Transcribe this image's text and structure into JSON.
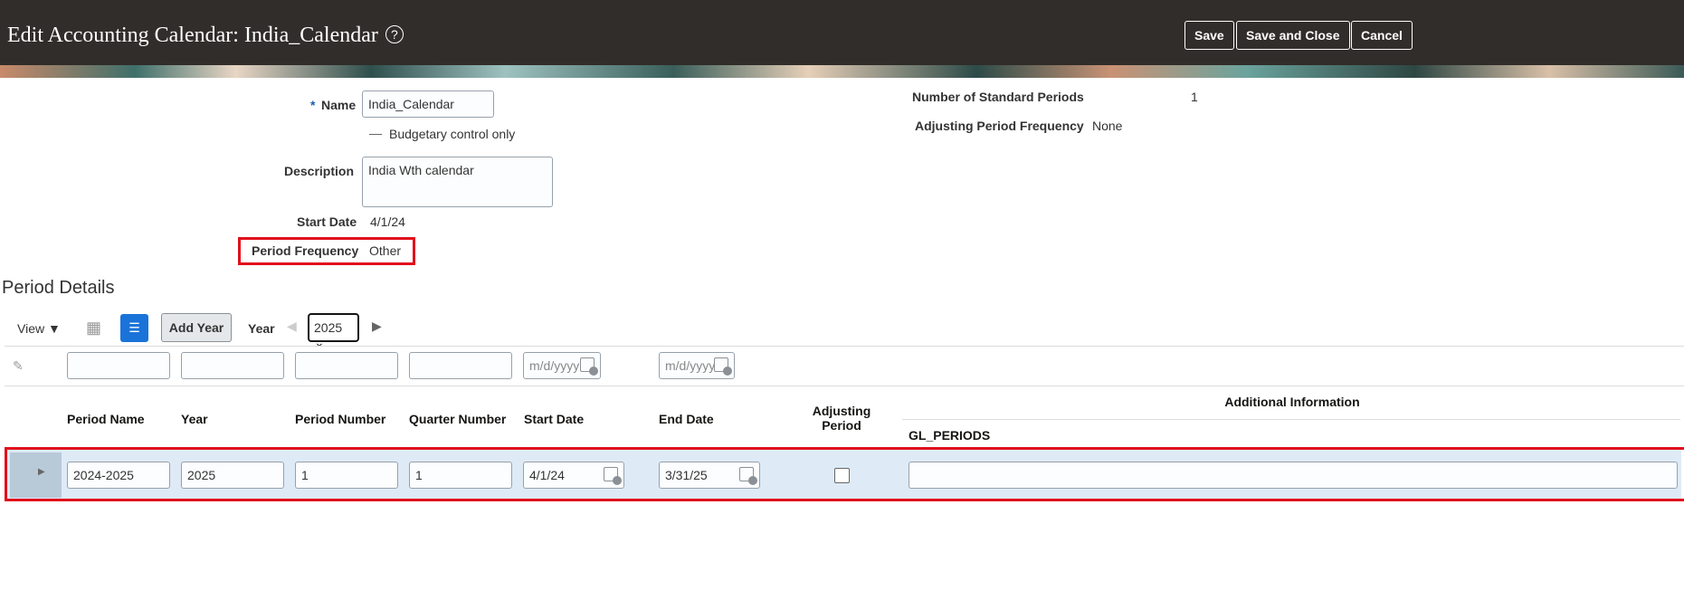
{
  "header": {
    "title": "Edit Accounting Calendar: India_Calendar",
    "help_icon": "help-circle-icon",
    "save": "Save",
    "save_close": "Save and Close",
    "cancel": "Cancel"
  },
  "form": {
    "name_label": "Name",
    "required": "*",
    "name_value": "India_Calendar",
    "budgetary_label": "Budgetary control only",
    "description_label": "Description",
    "description_value": "India Wth calendar",
    "start_date_label": "Start Date",
    "start_date_value": "4/1/24",
    "period_frequency_label": "Period Frequency",
    "period_frequency_value": "Other",
    "num_periods_label": "Number of Standard Periods",
    "num_periods_value": "1",
    "adjusting_freq_label": "Adjusting Period Frequency",
    "adjusting_freq_value": "None"
  },
  "period_details": {
    "title": "Period Details",
    "view": "View",
    "add_year": "Add Year",
    "year_label": "Year",
    "year_value": "2025",
    "date_placeholder": "m/d/yyyy",
    "columns": [
      "Period Name",
      "Year",
      "Period Number",
      "Quarter Number",
      "Start Date",
      "End Date",
      "Adjusting Period",
      "Additional Information",
      "GL_PERIODS"
    ],
    "rows": [
      {
        "period_name": "2024-2025",
        "year": "2025",
        "period_number": "1",
        "quarter_number": "1",
        "start_date": "4/1/24",
        "end_date": "3/31/25",
        "adjusting": false,
        "gl_periods": ""
      }
    ]
  },
  "colors": {
    "header_bg": "#312d2a",
    "highlight": "#e0101c",
    "row_selected": "#deebf7",
    "accent": "#1a73d9"
  }
}
